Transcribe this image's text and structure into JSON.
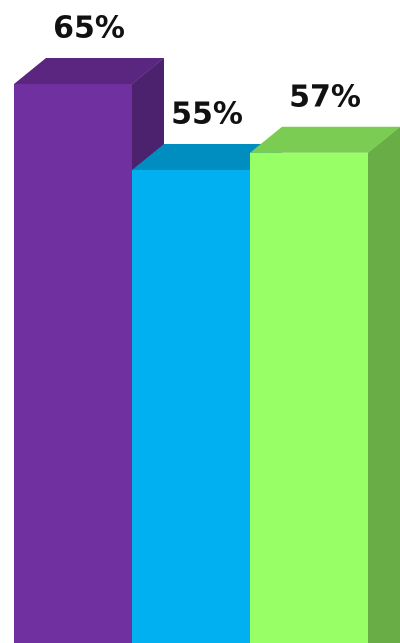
{
  "chart_data": {
    "type": "bar3d",
    "categories": [
      null,
      null,
      null
    ],
    "values": [
      65,
      55,
      57
    ],
    "value_labels": [
      "65%",
      "55%",
      "57%"
    ],
    "colors": [
      "#7030a0",
      "#00b0f0",
      "#99ff66"
    ]
  }
}
